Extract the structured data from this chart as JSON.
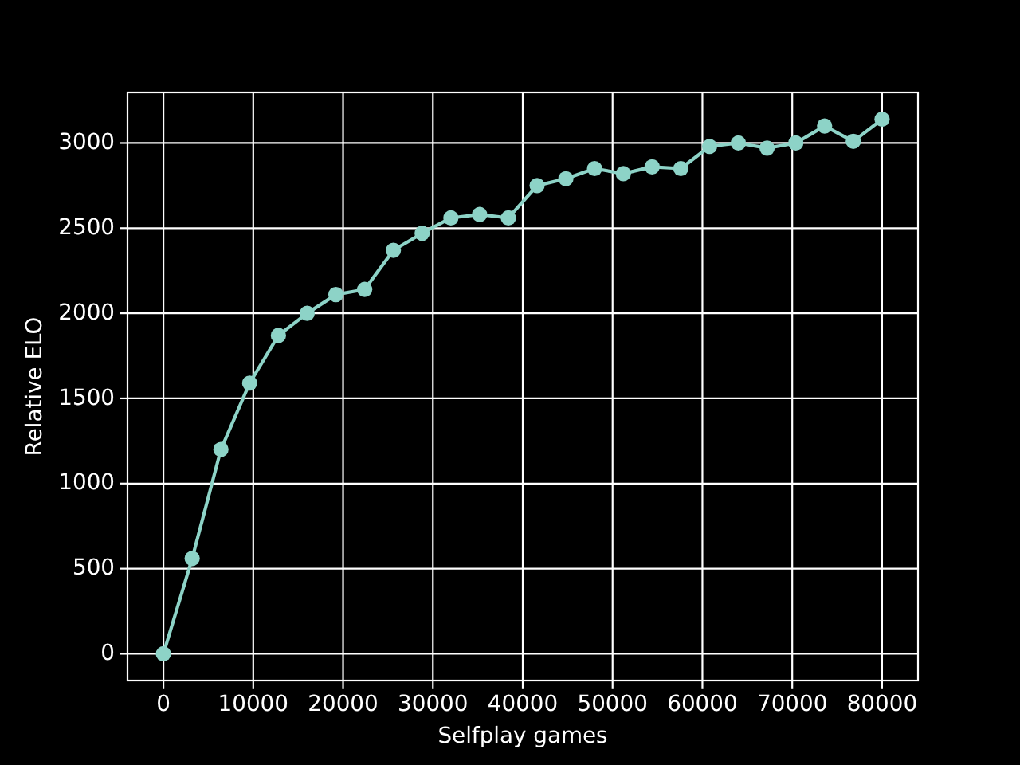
{
  "chart_data": {
    "type": "line",
    "xlabel": "Selfplay games",
    "ylabel": "Relative ELO",
    "x": [
      0,
      3200,
      6400,
      9600,
      12800,
      16000,
      19200,
      22400,
      25600,
      28800,
      32000,
      35200,
      38400,
      41600,
      44800,
      48000,
      51200,
      54400,
      57600,
      60800,
      64000,
      67200,
      70400,
      73600,
      76800,
      80000
    ],
    "series": [
      {
        "color": "#8dd3c7",
        "values": [
          0,
          560,
          1200,
          1590,
          1870,
          2000,
          2110,
          2140,
          2370,
          2470,
          2560,
          2580,
          2560,
          2750,
          2790,
          2850,
          2820,
          2860,
          2850,
          2980,
          3000,
          2970,
          3000,
          3100,
          3010,
          3140
        ]
      }
    ],
    "xlim": [
      -4000,
      84000
    ],
    "ylim": [
      -157,
      3297
    ],
    "xticks": [
      0,
      10000,
      20000,
      30000,
      40000,
      50000,
      60000,
      70000,
      80000
    ],
    "yticks": [
      0,
      500,
      1000,
      1500,
      2000,
      2500,
      3000
    ],
    "grid": true,
    "marker": "circle",
    "line_style": "solid"
  }
}
